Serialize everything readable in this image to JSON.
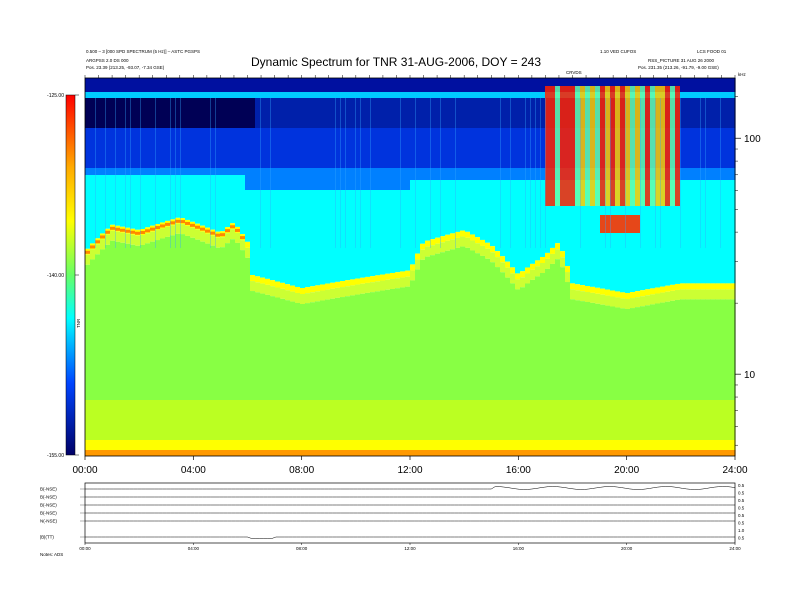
{
  "header": {
    "left_line1": "0.500 – 3 [000 SPD SPECTRUM (5 Hz)] – ASTC PGSPS",
    "left_line2": "ARGPSS 2.0 DS 000",
    "left_line3": "Pos.     23.39 (213.25, -93.07, -7.34 GSE)",
    "right_top1": "1.10 VED CUFOS",
    "right_top2": "LCS FOOD 01",
    "right_line2": "RSS_PICTURE 31 AUG 26 2000",
    "right_line3": "Pos.    231.35 (213.26, -91.79, -9.00 GSE)",
    "center_small": "CRVDS"
  },
  "chart_data": {
    "type": "heatmap",
    "title": "Dynamic Spectrum for TNR 31-AUG-2006, DOY = 243",
    "x_ticks": [
      "00:00",
      "04:00",
      "08:00",
      "12:00",
      "16:00",
      "20:00",
      "24:00"
    ],
    "x_range_hours": [
      0,
      24
    ],
    "y_scale": "log",
    "y_unit": "kHz",
    "y_ticks": [
      10,
      100
    ],
    "y_range": [
      4.5,
      180
    ],
    "colorbar": {
      "ticks": [
        "-125.00",
        "-140.00",
        "-155.00"
      ],
      "label": "TNR",
      "colors": [
        "#ff0000",
        "#ffff00",
        "#00ffff",
        "#0000ff",
        "#000066"
      ]
    },
    "features": {
      "cyan_yellow_boundary_kHz": [
        {
          "t": 0,
          "f": 30
        },
        {
          "t": 1,
          "f": 39
        },
        {
          "t": 2,
          "f": 37
        },
        {
          "t": 3.5,
          "f": 42
        },
        {
          "t": 5,
          "f": 36
        },
        {
          "t": 5.5,
          "f": 40
        },
        {
          "t": 6,
          "f": 33
        },
        {
          "t": 6.1,
          "f": 24
        },
        {
          "t": 8,
          "f": 21
        },
        {
          "t": 10,
          "f": 23
        },
        {
          "t": 12,
          "f": 25
        },
        {
          "t": 12.5,
          "f": 33
        },
        {
          "t": 14,
          "f": 37
        },
        {
          "t": 15,
          "f": 32
        },
        {
          "t": 16,
          "f": 24
        },
        {
          "t": 17,
          "f": 29
        },
        {
          "t": 17.5,
          "f": 33
        },
        {
          "t": 18,
          "f": 22
        },
        {
          "t": 19,
          "f": 21
        },
        {
          "t": 20,
          "f": 20
        },
        {
          "t": 21,
          "f": 21
        },
        {
          "t": 22,
          "f": 22
        },
        {
          "t": 24,
          "f": 22
        }
      ]
    }
  },
  "panels": {
    "labels": [
      "B(-NSE)",
      "B(-NSE)",
      "B(-NSE)",
      "B(-NSE)",
      "N(-NSE)",
      "|B|(TT)"
    ],
    "right_labels": [
      "0.5",
      "0.5",
      "0.5",
      "0.5",
      "0.5",
      "0.5",
      "1.0",
      "0.5"
    ],
    "x_ticks": [
      "00:00",
      "04:00",
      "08:00",
      "12:00",
      "16:00",
      "20:00",
      "24:00"
    ],
    "footer": "Notes:  ADS"
  }
}
